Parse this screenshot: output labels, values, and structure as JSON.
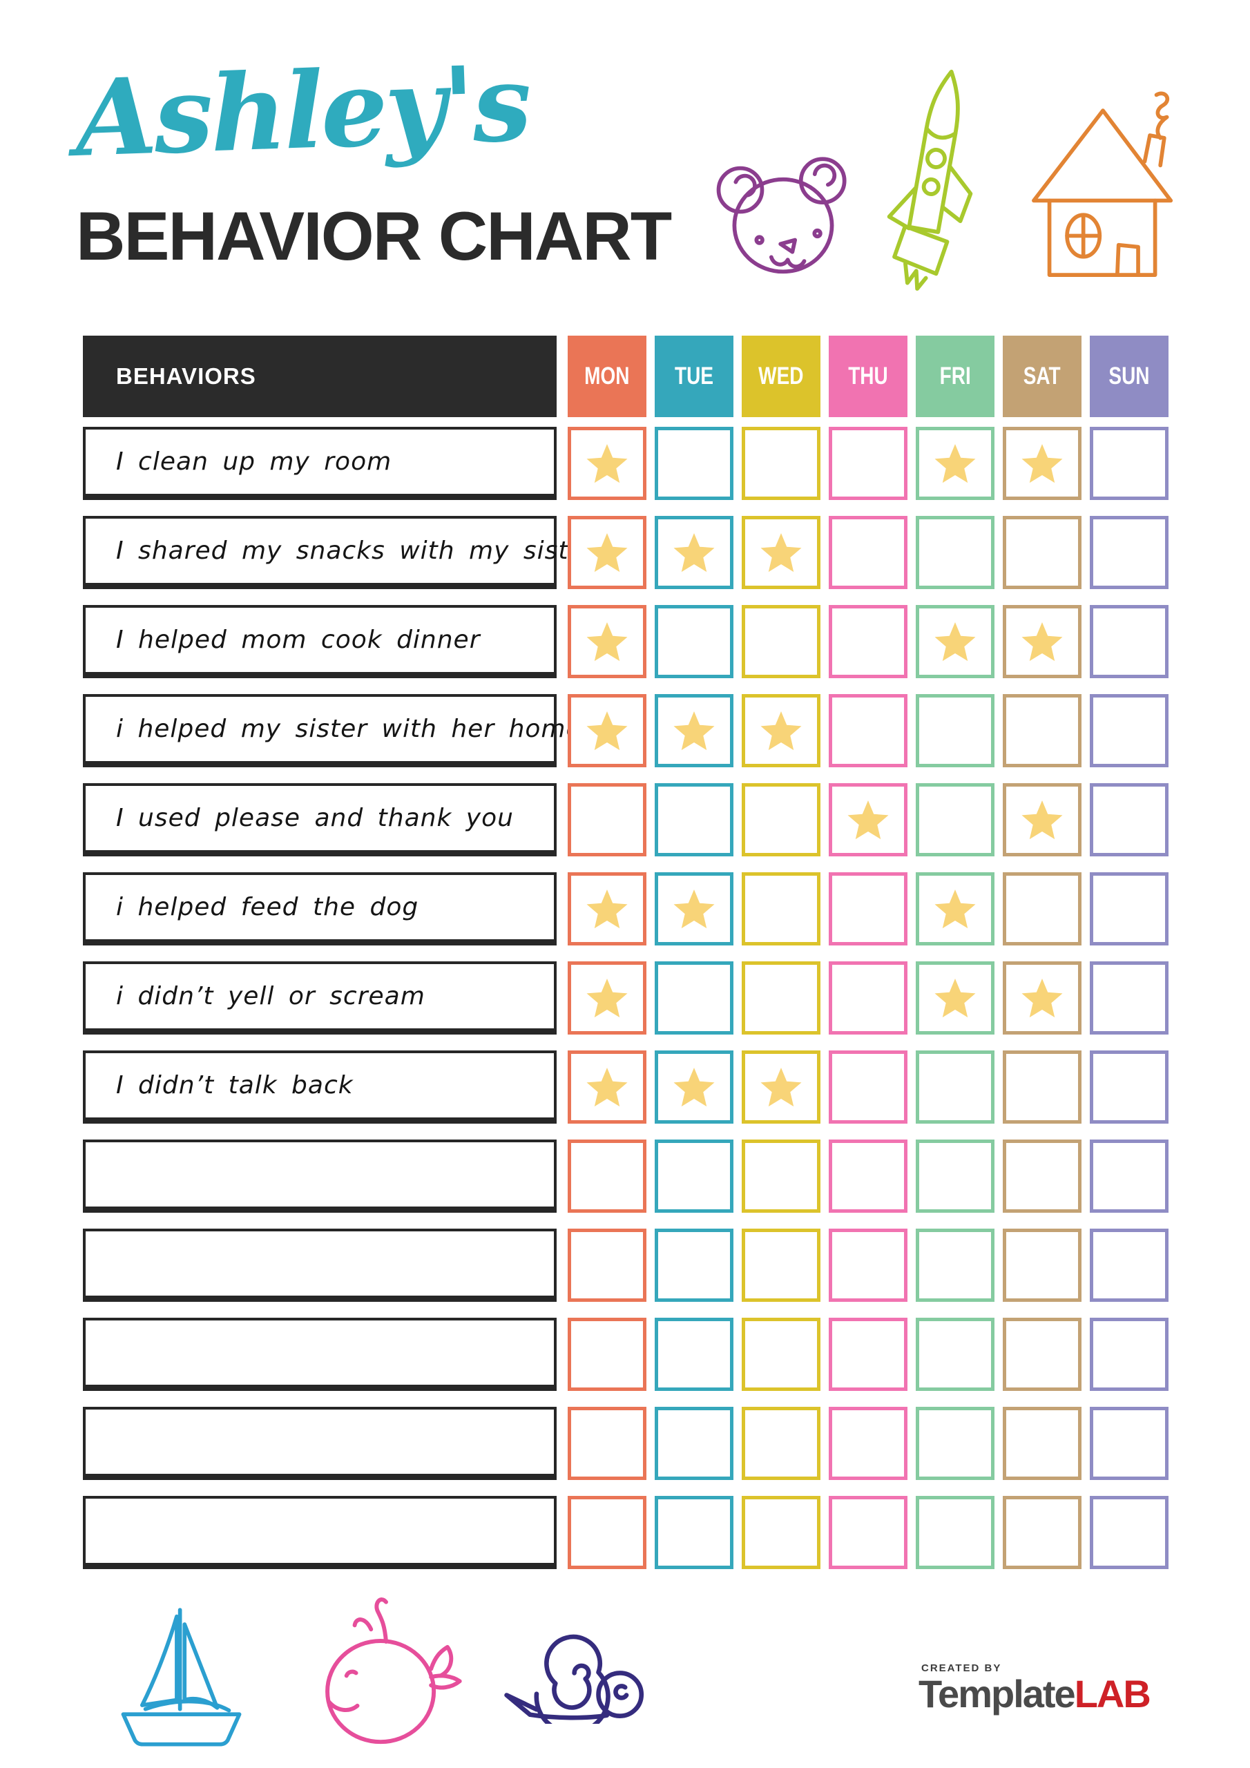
{
  "header": {
    "script_title": "Ashley's",
    "main_title": "BEHAVIOR CHART"
  },
  "table": {
    "behaviors_header": "BEHAVIORS",
    "header_bg": "#2b2b2b",
    "star_color": "#F8D478",
    "days": [
      {
        "label": "MON",
        "color": "#EA7556"
      },
      {
        "label": "TUE",
        "color": "#35A7BB"
      },
      {
        "label": "WED",
        "color": "#DCC32B"
      },
      {
        "label": "THU",
        "color": "#F173B1"
      },
      {
        "label": "FRI",
        "color": "#85CBA0"
      },
      {
        "label": "SAT",
        "color": "#C3A274"
      },
      {
        "label": "SUN",
        "color": "#8F8CC4"
      }
    ],
    "rows": [
      {
        "label": "I clean up my room",
        "stars": [
          "MON",
          "FRI",
          "SAT"
        ]
      },
      {
        "label": "I shared my snacks with my sister",
        "stars": [
          "MON",
          "TUE",
          "WED"
        ]
      },
      {
        "label": "I helped mom cook dinner",
        "stars": [
          "MON",
          "FRI",
          "SAT"
        ]
      },
      {
        "label": "i helped my sister with her homework",
        "stars": [
          "MON",
          "TUE",
          "WED"
        ]
      },
      {
        "label": "I used please and thank you",
        "stars": [
          "THU",
          "SAT"
        ]
      },
      {
        "label": "i helped feed the dog",
        "stars": [
          "MON",
          "TUE",
          "FRI"
        ]
      },
      {
        "label": "i didn’t yell or scream",
        "stars": [
          "MON",
          "FRI",
          "SAT"
        ]
      },
      {
        "label": "I didn’t talk back",
        "stars": [
          "MON",
          "TUE",
          "WED"
        ]
      },
      {
        "label": "",
        "stars": []
      },
      {
        "label": "",
        "stars": []
      },
      {
        "label": "",
        "stars": []
      },
      {
        "label": "",
        "stars": []
      },
      {
        "label": "",
        "stars": []
      }
    ]
  },
  "footer": {
    "logo": {
      "created_by": "CREATED BY",
      "brand_dark": "Template",
      "brand_accent": "LAB",
      "accent_color": "#CE2127"
    }
  },
  "colors": {
    "title_teal": "#2FABBE",
    "ink": "#2b2b2b",
    "bear": "#8B3D8E",
    "rocket": "#A8C92D",
    "house": "#E28434",
    "boat": "#2B9FD0",
    "whale": "#E64E9B",
    "snail": "#352C7E"
  }
}
